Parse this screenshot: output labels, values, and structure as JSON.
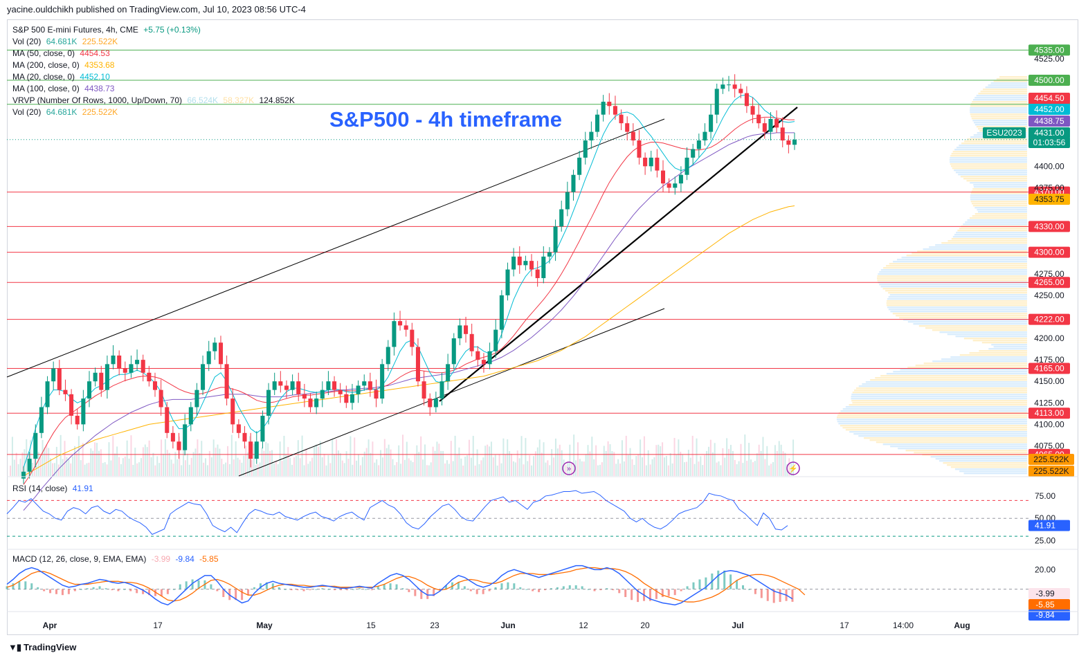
{
  "header": {
    "publisher_line": "yacine.ouldchikh published on TradingView.com, Jul 10, 2023 08:56 UTC-4"
  },
  "annotation_title": "S&P500 - 4h timeframe",
  "legend": {
    "symbol": "S&P 500 E-mini Futures, 4h, CME",
    "change": "+5.75 (+0.13%)",
    "vol_label": "Vol (20)",
    "vol_value": "64.681K",
    "vol_ma": "225.522K",
    "ma50_label": "MA (50, close, 0)",
    "ma50_value": "4454.53",
    "ma200_label": "MA (200, close, 0)",
    "ma200_value": "4353.68",
    "ma20_label": "MA (20, close, 0)",
    "ma20_value": "4452.10",
    "ma100_label": "MA (100, close, 0)",
    "ma100_value": "4438.73",
    "vrvp_label": "VRVP (Number Of Rows, 1000, Up/Down, 70)",
    "vrvp_up": "66.524K",
    "vrvp_down": "58.327K",
    "vrvp_total": "124.852K",
    "vol2_label": "Vol (20)",
    "vol2_value": "64.681K",
    "vol2_ma": "225.522K"
  },
  "rsi_legend": {
    "label": "RSI (14, close)",
    "value": "41.91"
  },
  "macd_legend": {
    "label": "MACD (12, 26, close, 9, EMA, EMA)",
    "hist": "-3.99",
    "macd": "-9.84",
    "signal": "-5.85"
  },
  "brand": "TradingView",
  "colors": {
    "up": "#089981",
    "down": "#f23645",
    "ma20": "#00bcd4",
    "ma50": "#f23645",
    "ma100": "#7e57c2",
    "ma200": "#ffb300",
    "hline_red": "#f23645",
    "hline_green": "#4caf50",
    "rsi": "#2962ff",
    "macd": "#2962ff",
    "signal": "#ff6d00",
    "accent": "#2962ff"
  },
  "chart_data": {
    "type": "candlestick",
    "y_axis_ticks": [
      "4525.00",
      "4400.00",
      "4375.00",
      "4275.00",
      "4250.00",
      "4200.00",
      "4175.00",
      "4150.00",
      "4125.00",
      "4100.00",
      "4075.00"
    ],
    "ylim": [
      4040,
      4545
    ],
    "x_axis_ticks": [
      "Apr",
      "17",
      "May",
      "15",
      "23",
      "Jun",
      "12",
      "20",
      "Jul",
      "17",
      "14:00",
      "Aug"
    ],
    "horizontal_levels": [
      {
        "value": 4535,
        "label": "4535.00",
        "color": "green"
      },
      {
        "value": 4500,
        "label": "4500.00",
        "color": "green"
      },
      {
        "value": 4472,
        "label": "4472.00",
        "color": "green"
      },
      {
        "value": 4370,
        "label": "4370.00",
        "color": "red"
      },
      {
        "value": 4330,
        "label": "4330.00",
        "color": "red"
      },
      {
        "value": 4300,
        "label": "4300.00",
        "color": "red"
      },
      {
        "value": 4265,
        "label": "4265.00",
        "color": "red"
      },
      {
        "value": 4222,
        "label": "4222.00",
        "color": "red"
      },
      {
        "value": 4165,
        "label": "4165.00",
        "color": "red"
      },
      {
        "value": 4113,
        "label": "4113.00",
        "color": "red"
      },
      {
        "value": 4065,
        "label": "4065.00",
        "color": "red"
      }
    ],
    "price_badges": [
      {
        "label": "4454.50",
        "value": 4454.5,
        "color": "#f23645"
      },
      {
        "label": "4452.00",
        "value": 4452,
        "color": "#00bcd4"
      },
      {
        "label": "4438.75",
        "value": 4438.75,
        "color": "#7e57c2"
      },
      {
        "label": "4431.00",
        "value": 4431,
        "color": "#089981"
      },
      {
        "label": "01:03:56",
        "value": 4418,
        "color": "#089981"
      },
      {
        "label": "4353.75",
        "value": 4353.75,
        "color": "#ffb300"
      }
    ],
    "symbol_badge": "ESU2023",
    "volume_badges": [
      "225.522K",
      "225.522K"
    ],
    "close_series": [
      4045,
      4060,
      4090,
      4120,
      4150,
      4165,
      4140,
      4135,
      4110,
      4100,
      4130,
      4150,
      4160,
      4140,
      4170,
      4180,
      4165,
      4160,
      4170,
      4175,
      4160,
      4150,
      4140,
      4120,
      4090,
      4080,
      4070,
      4100,
      4120,
      4140,
      4170,
      4185,
      4195,
      4170,
      4130,
      4100,
      4090,
      4080,
      4060,
      4080,
      4110,
      4140,
      4150,
      4145,
      4140,
      4150,
      4135,
      4130,
      4120,
      4130,
      4140,
      4150,
      4140,
      4135,
      4125,
      4135,
      4145,
      4150,
      4140,
      4130,
      4170,
      4190,
      4220,
      4215,
      4210,
      4190,
      4150,
      4130,
      4120,
      4130,
      4150,
      4170,
      4200,
      4215,
      4205,
      4185,
      4175,
      4170,
      4185,
      4210,
      4250,
      4280,
      4295,
      4285,
      4290,
      4280,
      4270,
      4295,
      4300,
      4330,
      4350,
      4370,
      4390,
      4410,
      4430,
      4440,
      4460,
      4475,
      4470,
      4460,
      4450,
      4440,
      4430,
      4410,
      4400,
      4410,
      4395,
      4380,
      4375,
      4380,
      4390,
      4410,
      4420,
      4430,
      4440,
      4460,
      4490,
      4495,
      4495,
      4490,
      4485,
      4470,
      4460,
      4450,
      4440,
      4455,
      4445,
      4430,
      4425,
      4431
    ],
    "ma20_series": [
      4050,
      4070,
      4095,
      4115,
      4130,
      4140,
      4140,
      4138,
      4130,
      4125,
      4128,
      4135,
      4142,
      4145,
      4150,
      4155,
      4158,
      4158,
      4160,
      4163,
      4160,
      4155,
      4148,
      4138,
      4120,
      4105,
      4095,
      4095,
      4100,
      4110,
      4125,
      4140,
      4155,
      4160,
      4150,
      4135,
      4120,
      4108,
      4095,
      4090,
      4095,
      4105,
      4118,
      4130,
      4138,
      4142,
      4142,
      4140,
      4138,
      4137,
      4138,
      4140,
      4141,
      4140,
      4138,
      4137,
      4138,
      4140,
      4142,
      4140,
      4145,
      4155,
      4170,
      4185,
      4195,
      4198,
      4190,
      4175,
      4160,
      4150,
      4148,
      4152,
      4162,
      4175,
      4185,
      4190,
      4190,
      4185,
      4182,
      4188,
      4205,
      4225,
      4245,
      4260,
      4272,
      4280,
      4282,
      4285,
      4290,
      4300,
      4315,
      4330,
      4348,
      4366,
      4385,
      4402,
      4420,
      4437,
      4450,
      4458,
      4462,
      4463,
      4460,
      4453,
      4443,
      4435,
      4425,
      4415,
      4405,
      4398,
      4395,
      4397,
      4402,
      4410,
      4418,
      4428,
      4442,
      4456,
      4468,
      4477,
      4482,
      4483,
      4480,
      4473,
      4465,
      4460,
      4455,
      4452,
      4451,
      4452
    ],
    "ma50_series": [
      4030,
      4040,
      4052,
      4065,
      4078,
      4090,
      4100,
      4108,
      4113,
      4118,
      4123,
      4128,
      4133,
      4137,
      4141,
      4145,
      4148,
      4151,
      4153,
      4155,
      4156,
      4156,
      4155,
      4153,
      4149,
      4145,
      4141,
      4138,
      4136,
      4135,
      4136,
      4138,
      4141,
      4143,
      4143,
      4141,
      4139,
      4136,
      4132,
      4128,
      4126,
      4125,
      4126,
      4128,
      4130,
      4132,
      4133,
      4134,
      4134,
      4135,
      4136,
      4137,
      4138,
      4139,
      4139,
      4139,
      4139,
      4140,
      4141,
      4141,
      4143,
      4146,
      4150,
      4155,
      4159,
      4162,
      4163,
      4162,
      4161,
      4160,
      4160,
      4161,
      4163,
      4166,
      4170,
      4173,
      4176,
      4178,
      4180,
      4183,
      4188,
      4195,
      4203,
      4212,
      4221,
      4229,
      4237,
      4245,
      4254,
      4264,
      4275,
      4287,
      4300,
      4313,
      4327,
      4340,
      4354,
      4368,
      4381,
      4392,
      4402,
      4411,
      4418,
      4423,
      4426,
      4428,
      4428,
      4427,
      4425,
      4423,
      4421,
      4420,
      4419,
      4419,
      4420,
      4422,
      4426,
      4431,
      4437,
      4443,
      4448,
      4452,
      4455,
      4456,
      4457,
      4457,
      4456,
      4455,
      4454,
      4454
    ],
    "ma100_series": [
      4000,
      4008,
      4016,
      4025,
      4033,
      4041,
      4049,
      4056,
      4063,
      4069,
      4075,
      4081,
      4087,
      4092,
      4097,
      4102,
      4106,
      4110,
      4114,
      4117,
      4120,
      4123,
      4125,
      4127,
      4128,
      4129,
      4129,
      4129,
      4129,
      4130,
      4131,
      4132,
      4133,
      4134,
      4135,
      4135,
      4135,
      4135,
      4134,
      4133,
      4132,
      4132,
      4132,
      4132,
      4133,
      4134,
      4135,
      4135,
      4136,
      4137,
      4138,
      4138,
      4139,
      4140,
      4140,
      4141,
      4141,
      4142,
      4142,
      4143,
      4144,
      4145,
      4147,
      4149,
      4151,
      4153,
      4154,
      4155,
      4156,
      4157,
      4158,
      4159,
      4160,
      4162,
      4164,
      4166,
      4168,
      4170,
      4172,
      4175,
      4178,
      4182,
      4186,
      4191,
      4196,
      4201,
      4207,
      4213,
      4219,
      4226,
      4233,
      4241,
      4249,
      4258,
      4267,
      4276,
      4286,
      4296,
      4306,
      4316,
      4325,
      4334,
      4343,
      4351,
      4358,
      4365,
      4371,
      4377,
      4382,
      4387,
      4392,
      4397,
      4401,
      4405,
      4409,
      4413,
      4417,
      4421,
      4425,
      4428,
      4431,
      4434,
      4436,
      4437,
      4438,
      4438,
      4439,
      4439,
      4439,
      4439
    ],
    "ma200_series": [
      4040,
      4044,
      4048,
      4052,
      4056,
      4060,
      4064,
      4067,
      4070,
      4073,
      4076,
      4079,
      4082,
      4084,
      4086,
      4088,
      4090,
      4092,
      4094,
      4096,
      4098,
      4100,
      4101,
      4102,
      4103,
      4104,
      4105,
      4106,
      4107,
      4108,
      4109,
      4110,
      4111,
      4112,
      4113,
      4114,
      4115,
      4116,
      4117,
      4118,
      4119,
      4120,
      4121,
      4122,
      4123,
      4124,
      4125,
      4126,
      4127,
      4128,
      4129,
      4130,
      4131,
      4132,
      4133,
      4134,
      4135,
      4136,
      4137,
      4138,
      4139,
      4140,
      4141,
      4142,
      4143,
      4144,
      4145,
      4146,
      4147,
      4148,
      4149,
      4150,
      4151,
      4152,
      4153,
      4154,
      4155,
      4156,
      4158,
      4160,
      4162,
      4164,
      4166,
      4168,
      4170,
      4172,
      4174,
      4177,
      4180,
      4183,
      4186,
      4190,
      4194,
      4198,
      4202,
      4207,
      4212,
      4217,
      4222,
      4227,
      4232,
      4237,
      4242,
      4247,
      4252,
      4257,
      4262,
      4267,
      4272,
      4277,
      4282,
      4287,
      4292,
      4297,
      4302,
      4307,
      4312,
      4317,
      4322,
      4326,
      4330,
      4334,
      4338,
      4341,
      4344,
      4347,
      4349,
      4351,
      4353,
      4354
    ],
    "rsi": {
      "ticks": [
        "75.00",
        "50.00",
        "25.00"
      ],
      "last": 41.91,
      "overbought": 70,
      "oversold": 30,
      "values": [
        55,
        62,
        70,
        68,
        72,
        65,
        58,
        55,
        50,
        48,
        58,
        62,
        60,
        55,
        62,
        64,
        58,
        55,
        60,
        58,
        52,
        48,
        45,
        40,
        32,
        35,
        38,
        55,
        60,
        64,
        68,
        66,
        65,
        55,
        42,
        38,
        35,
        40,
        34,
        45,
        55,
        60,
        58,
        55,
        54,
        57,
        52,
        50,
        48,
        52,
        55,
        57,
        52,
        50,
        47,
        52,
        55,
        57,
        52,
        48,
        62,
        66,
        70,
        65,
        62,
        55,
        45,
        40,
        38,
        44,
        52,
        58,
        64,
        66,
        60,
        52,
        48,
        47,
        55,
        63,
        70,
        72,
        74,
        68,
        70,
        65,
        60,
        68,
        70,
        75,
        76,
        78,
        80,
        80,
        81,
        78,
        79,
        80,
        76,
        70,
        66,
        62,
        58,
        50,
        46,
        50,
        44,
        40,
        38,
        42,
        48,
        55,
        58,
        60,
        62,
        68,
        78,
        76,
        75,
        72,
        70,
        60,
        55,
        48,
        42,
        56,
        50,
        38,
        37,
        41.91
      ]
    },
    "macd": {
      "ticks": [
        "20.00",
        "0.00",
        "-3.99",
        "-5.85",
        "-9.84"
      ],
      "hist_last": -3.99,
      "macd_last": -9.84,
      "signal_last": -5.85,
      "macd_values": [
        5,
        10,
        16,
        20,
        22,
        20,
        16,
        12,
        8,
        4,
        2,
        3,
        5,
        6,
        8,
        10,
        9,
        7,
        6,
        7,
        5,
        2,
        -1,
        -5,
        -10,
        -14,
        -16,
        -12,
        -6,
        0,
        6,
        10,
        14,
        14,
        8,
        0,
        -6,
        -10,
        -14,
        -12,
        -4,
        2,
        6,
        8,
        6,
        5,
        4,
        3,
        2,
        2,
        3,
        4,
        3,
        2,
        1,
        1,
        2,
        3,
        2,
        1,
        6,
        10,
        14,
        16,
        14,
        10,
        4,
        -2,
        -6,
        -6,
        -2,
        4,
        10,
        14,
        12,
        8,
        4,
        2,
        4,
        8,
        14,
        18,
        20,
        18,
        16,
        14,
        12,
        14,
        16,
        18,
        20,
        22,
        24,
        24,
        22,
        20,
        20,
        22,
        20,
        16,
        10,
        4,
        -2,
        -6,
        -10,
        -12,
        -14,
        -15,
        -16,
        -14,
        -10,
        -6,
        -2,
        2,
        8,
        14,
        18,
        19,
        18,
        16,
        14,
        10,
        6,
        2,
        -2,
        -4,
        -6,
        -9.84
      ],
      "signal_values": [
        2,
        4,
        8,
        12,
        16,
        18,
        18,
        16,
        13,
        10,
        7,
        5,
        5,
        5,
        6,
        7,
        8,
        8,
        8,
        7,
        7,
        6,
        4,
        1,
        -3,
        -7,
        -11,
        -12,
        -11,
        -8,
        -4,
        1,
        5,
        9,
        10,
        8,
        5,
        1,
        -3,
        -6,
        -6,
        -4,
        -1,
        2,
        4,
        5,
        5,
        4,
        4,
        3,
        3,
        3,
        3,
        3,
        2,
        2,
        2,
        2,
        2,
        2,
        3,
        5,
        8,
        11,
        13,
        13,
        11,
        8,
        4,
        1,
        -1,
        0,
        3,
        7,
        9,
        10,
        9,
        7,
        6,
        6,
        8,
        11,
        14,
        16,
        16,
        16,
        15,
        15,
        15,
        16,
        17,
        18,
        20,
        21,
        22,
        22,
        21,
        21,
        21,
        20,
        18,
        15,
        11,
        6,
        2,
        -2,
        -6,
        -8,
        -10,
        -12,
        -13,
        -13,
        -12,
        -10,
        -8,
        -5,
        -1,
        4,
        9,
        12,
        14,
        15,
        15,
        14,
        12,
        9,
        6,
        3,
        0,
        -5.85
      ]
    }
  }
}
